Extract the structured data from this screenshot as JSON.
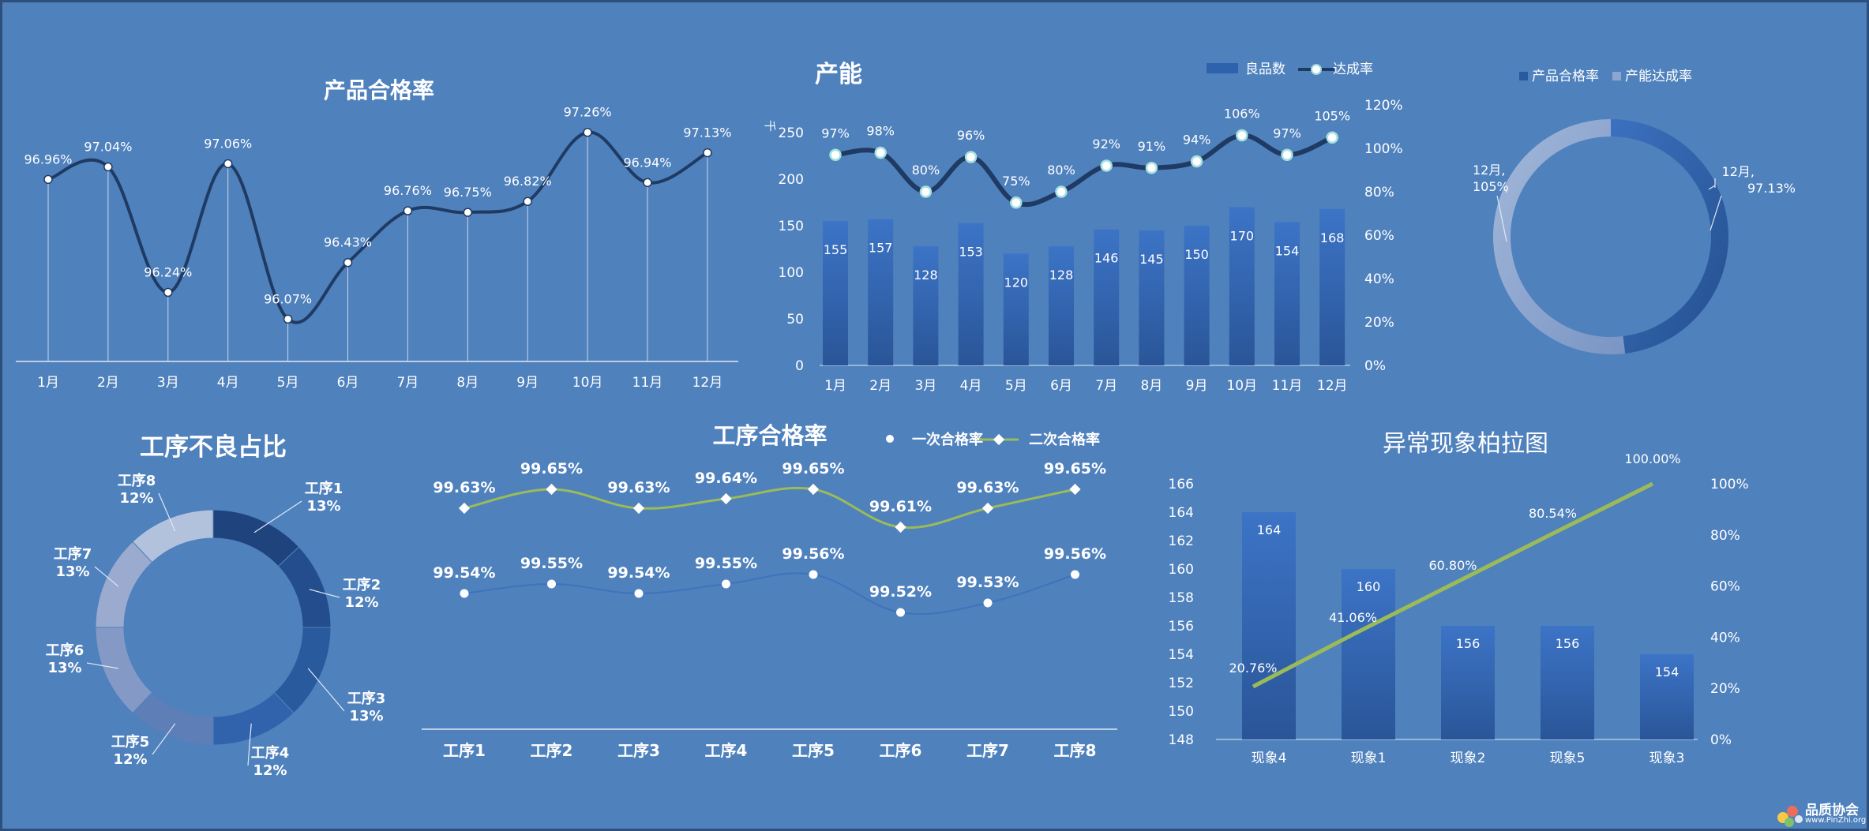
{
  "colors": {
    "background": "#4f81bd",
    "line_dark": "#1f3b63",
    "green": "#9bbb59",
    "bar_top": "#3c74c6",
    "bar_bottom": "#25508f"
  },
  "quality": {
    "title": "产品合格率",
    "chart_data": {
      "type": "line",
      "categories": [
        "1月",
        "2月",
        "3月",
        "4月",
        "5月",
        "6月",
        "7月",
        "8月",
        "9月",
        "10月",
        "11月",
        "12月"
      ],
      "values": [
        96.96,
        97.04,
        96.24,
        97.06,
        96.07,
        96.43,
        96.76,
        96.75,
        96.82,
        97.26,
        96.94,
        97.13
      ],
      "labels": [
        "96.96%",
        "97.04%",
        "96.24%",
        "97.06%",
        "96.07%",
        "96.43%",
        "96.76%",
        "96.75%",
        "96.82%",
        "97.26%",
        "96.94%",
        "97.13%"
      ],
      "ylim": [
        95.8,
        97.5
      ]
    }
  },
  "capacity": {
    "title": "产能",
    "unit": "千",
    "legend": {
      "bar": "良品数",
      "line": "达成率"
    },
    "chart_data": {
      "type": "bar+line",
      "categories": [
        "1月",
        "2月",
        "3月",
        "4月",
        "5月",
        "6月",
        "7月",
        "8月",
        "9月",
        "10月",
        "11月",
        "12月"
      ],
      "bars": [
        155,
        157,
        128,
        153,
        120,
        128,
        146,
        145,
        150,
        170,
        154,
        168
      ],
      "bar_labels": [
        "155",
        "157",
        "128",
        "153",
        "120",
        "128",
        "146",
        "145",
        "150",
        "170",
        "154",
        "168"
      ],
      "rate": [
        97,
        98,
        80,
        96,
        75,
        80,
        92,
        91,
        94,
        106,
        97,
        105
      ],
      "rate_labels": [
        "97%",
        "98%",
        "80%",
        "96%",
        "75%",
        "80%",
        "92%",
        "91%",
        "94%",
        "106%",
        "97%",
        "105%"
      ],
      "y_left": {
        "min": 0,
        "max": 250,
        "ticks": [
          "0",
          "50",
          "100",
          "150",
          "200",
          "250"
        ]
      },
      "y_right": {
        "min": 0,
        "max": 120,
        "ticks": [
          "0%",
          "20%",
          "40%",
          "60%",
          "80%",
          "100%",
          "120%"
        ]
      }
    }
  },
  "donut": {
    "legend": [
      "产品合格率",
      "产能达成率"
    ],
    "label_left": [
      "12月,",
      "105%"
    ],
    "label_right": [
      "12月,",
      "97.13%"
    ],
    "chart_data": {
      "type": "pie",
      "series": [
        {
          "name": "产品合格率",
          "value": 97.13
        },
        {
          "name": "产能达成率",
          "value": 105
        }
      ]
    }
  },
  "defect": {
    "title": "工序不良占比",
    "chart_data": {
      "type": "pie",
      "labels": [
        "工序1",
        "工序2",
        "工序3",
        "工序4",
        "工序5",
        "工序6",
        "工序7",
        "工序8"
      ],
      "values": [
        13,
        12,
        13,
        12,
        12,
        13,
        13,
        12
      ],
      "pct_labels": [
        "13%",
        "12%",
        "13%",
        "12%",
        "12%",
        "13%",
        "13%",
        "12%"
      ]
    }
  },
  "process": {
    "title": "工序合格率",
    "legend": [
      "一次合格率",
      "二次合格率"
    ],
    "chart_data": {
      "type": "line",
      "categories": [
        "工序1",
        "工序2",
        "工序3",
        "工序4",
        "工序5",
        "工序6",
        "工序7",
        "工序8"
      ],
      "series": [
        {
          "name": "一次合格率",
          "values": [
            99.54,
            99.55,
            99.54,
            99.55,
            99.56,
            99.52,
            99.53,
            99.56
          ],
          "labels": [
            "99.54%",
            "99.55%",
            "99.54%",
            "99.55%",
            "99.56%",
            "99.52%",
            "99.53%",
            "99.56%"
          ]
        },
        {
          "name": "二次合格率",
          "values": [
            99.63,
            99.65,
            99.63,
            99.64,
            99.65,
            99.61,
            99.63,
            99.65
          ],
          "labels": [
            "99.63%",
            "99.65%",
            "99.63%",
            "99.64%",
            "99.65%",
            "99.61%",
            "99.63%",
            "99.65%"
          ]
        }
      ],
      "ylim": [
        99.45,
        99.7
      ]
    }
  },
  "pareto": {
    "title": "异常现象柏拉图",
    "chart_data": {
      "type": "bar+line",
      "categories": [
        "现象4",
        "现象1",
        "现象2",
        "现象5",
        "现象3"
      ],
      "values": [
        164,
        160,
        156,
        156,
        154
      ],
      "bar_labels": [
        "164",
        "160",
        "156",
        "156",
        "154"
      ],
      "cumulative": [
        20.76,
        41.06,
        60.8,
        80.54,
        100
      ],
      "cum_labels": [
        "20.76%",
        "41.06%",
        "60.80%",
        "80.54%",
        "100.00%"
      ],
      "y_left": {
        "min": 148,
        "max": 166,
        "ticks": [
          "148",
          "150",
          "152",
          "154",
          "156",
          "158",
          "160",
          "162",
          "164",
          "166"
        ]
      },
      "y_right": {
        "min": 0,
        "max": 100,
        "ticks": [
          "0%",
          "20%",
          "40%",
          "60%",
          "80%",
          "100%"
        ]
      }
    }
  },
  "watermark": {
    "name": "品质协会",
    "url": "www.PinZhi.org"
  }
}
